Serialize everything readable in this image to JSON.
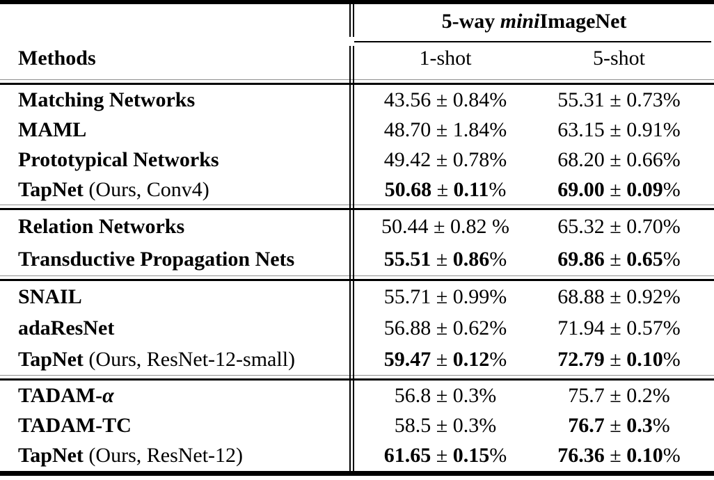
{
  "header": {
    "group_title": {
      "prefix": "5-way ",
      "italic": "mini",
      "suffix": "ImageNet"
    },
    "methods_label": "Methods",
    "col_1shot": "1-shot",
    "col_5shot": "5-shot"
  },
  "groups": [
    {
      "rows": [
        {
          "name": "Matching Networks",
          "note": "",
          "c1": {
            "v1": "43.56",
            "pm": " ± ",
            "v2": "0.84",
            "pct": "%",
            "bold": false
          },
          "c2": {
            "v1": "55.31",
            "pm": " ± ",
            "v2": "0.73",
            "pct": "%",
            "bold": false
          }
        },
        {
          "name": "MAML",
          "note": "",
          "c1": {
            "v1": "48.70",
            "pm": " ± ",
            "v2": "1.84",
            "pct": "%",
            "bold": false
          },
          "c2": {
            "v1": "63.15",
            "pm": " ± ",
            "v2": "0.91",
            "pct": "%",
            "bold": false
          }
        },
        {
          "name": "Prototypical Networks",
          "note": "",
          "c1": {
            "v1": "49.42",
            "pm": " ± ",
            "v2": "0.78",
            "pct": "%",
            "bold": false
          },
          "c2": {
            "v1": "68.20",
            "pm": " ± ",
            "v2": "0.66",
            "pct": "%",
            "bold": false
          }
        },
        {
          "name": "TapNet",
          "note": " (Ours, Conv4)",
          "c1": {
            "v1": "50.68",
            "pm": " ± ",
            "v2": "0.11",
            "pct": "%",
            "bold": true
          },
          "c2": {
            "v1": "69.00",
            "pm": " ± ",
            "v2": "0.09",
            "pct": "%",
            "bold": true
          }
        }
      ]
    },
    {
      "rows": [
        {
          "name": "Relation Networks",
          "note": "",
          "c1": {
            "v1": "50.44",
            "pm": " ± ",
            "v2": "0.82",
            "pct": " %",
            "bold": false
          },
          "c2": {
            "v1": "65.32",
            "pm": " ± ",
            "v2": "0.70",
            "pct": "%",
            "bold": false
          }
        },
        {
          "name": "Transductive Propagation Nets",
          "note": "",
          "c1": {
            "v1": "55.51",
            "pm": " ± ",
            "v2": "0.86",
            "pct": "%",
            "bold": true
          },
          "c2": {
            "v1": "69.86",
            "pm": " ± ",
            "v2": "0.65",
            "pct": "%",
            "bold": true
          }
        }
      ]
    },
    {
      "rows": [
        {
          "name": "SNAIL",
          "note": "",
          "c1": {
            "v1": "55.71",
            "pm": " ± ",
            "v2": "0.99",
            "pct": "%",
            "bold": false
          },
          "c2": {
            "v1": "68.88",
            "pm": " ± ",
            "v2": "0.92",
            "pct": "%",
            "bold": false
          }
        },
        {
          "name": "adaResNet",
          "note": "",
          "c1": {
            "v1": "56.88",
            "pm": " ± ",
            "v2": "0.62",
            "pct": "%",
            "bold": false
          },
          "c2": {
            "v1": "71.94",
            "pm": " ± ",
            "v2": "0.57",
            "pct": "%",
            "bold": false
          }
        },
        {
          "name": "TapNet",
          "note": " (Ours, ResNet-12-small)",
          "c1": {
            "v1": "59.47",
            "pm": " ± ",
            "v2": "0.12",
            "pct": "%",
            "bold": true
          },
          "c2": {
            "v1": "72.79",
            "pm": " ± ",
            "v2": "0.10",
            "pct": "%",
            "bold": true
          }
        }
      ]
    },
    {
      "rows": [
        {
          "name": "TADAM-",
          "alpha": "α",
          "note": "",
          "c1": {
            "v1": "56.8",
            "pm": " ± ",
            "v2": "0.3",
            "pct": "%",
            "bold": false
          },
          "c2": {
            "v1": "75.7",
            "pm": " ± ",
            "v2": "0.2",
            "pct": "%",
            "bold": false
          }
        },
        {
          "name": "TADAM-TC",
          "note": "",
          "c1": {
            "v1": "58.5",
            "pm": " ± ",
            "v2": "0.3",
            "pct": "%",
            "bold": false
          },
          "c2": {
            "v1": "76.7",
            "pm": " ± ",
            "v2": "0.3",
            "pct": "%",
            "bold": true
          }
        },
        {
          "name": "TapNet",
          "note": " (Ours, ResNet-12)",
          "c1": {
            "v1": "61.65",
            "pm": " ± ",
            "v2": "0.15",
            "pct": "%",
            "bold": true
          },
          "c2": {
            "v1": "76.36",
            "pm": " ± ",
            "v2": "0.10",
            "pct": "%",
            "bold": true
          }
        }
      ]
    }
  ]
}
